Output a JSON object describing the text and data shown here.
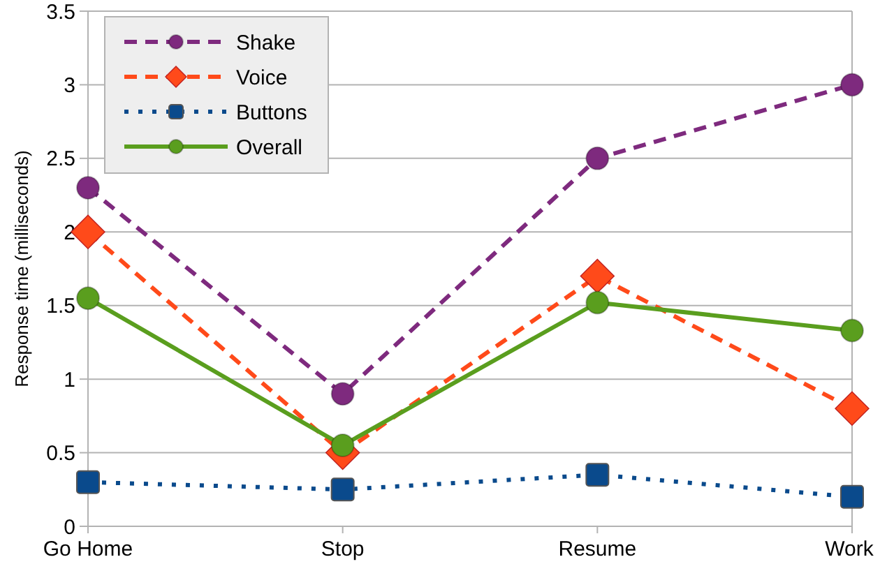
{
  "chart_data": {
    "type": "line",
    "ylabel": "Response time (milliseconds)",
    "categories": [
      "Go Home",
      "Stop",
      "Resume",
      "Work"
    ],
    "series": [
      {
        "name": "Shake",
        "color": "#7e2a7e",
        "marker": "circle",
        "line_style": "dashed",
        "values": [
          2.3,
          0.9,
          2.5,
          3.0
        ]
      },
      {
        "name": "Voice",
        "color": "#ff4a1a",
        "marker": "diamond",
        "line_style": "dashed",
        "values": [
          2.0,
          0.5,
          1.7,
          0.8
        ]
      },
      {
        "name": "Buttons",
        "color": "#0a4a8c",
        "marker": "square",
        "line_style": "dotted",
        "values": [
          0.3,
          0.25,
          0.35,
          0.2
        ]
      },
      {
        "name": "Overall",
        "color": "#5a9e1e",
        "marker": "circle",
        "line_style": "solid",
        "values": [
          1.55,
          0.55,
          1.52,
          1.33
        ]
      }
    ],
    "ylim": [
      0,
      3.5
    ],
    "yticks": [
      0,
      0.5,
      1,
      1.5,
      2,
      2.5,
      3,
      3.5
    ],
    "grid": "y",
    "legend": "top left"
  }
}
